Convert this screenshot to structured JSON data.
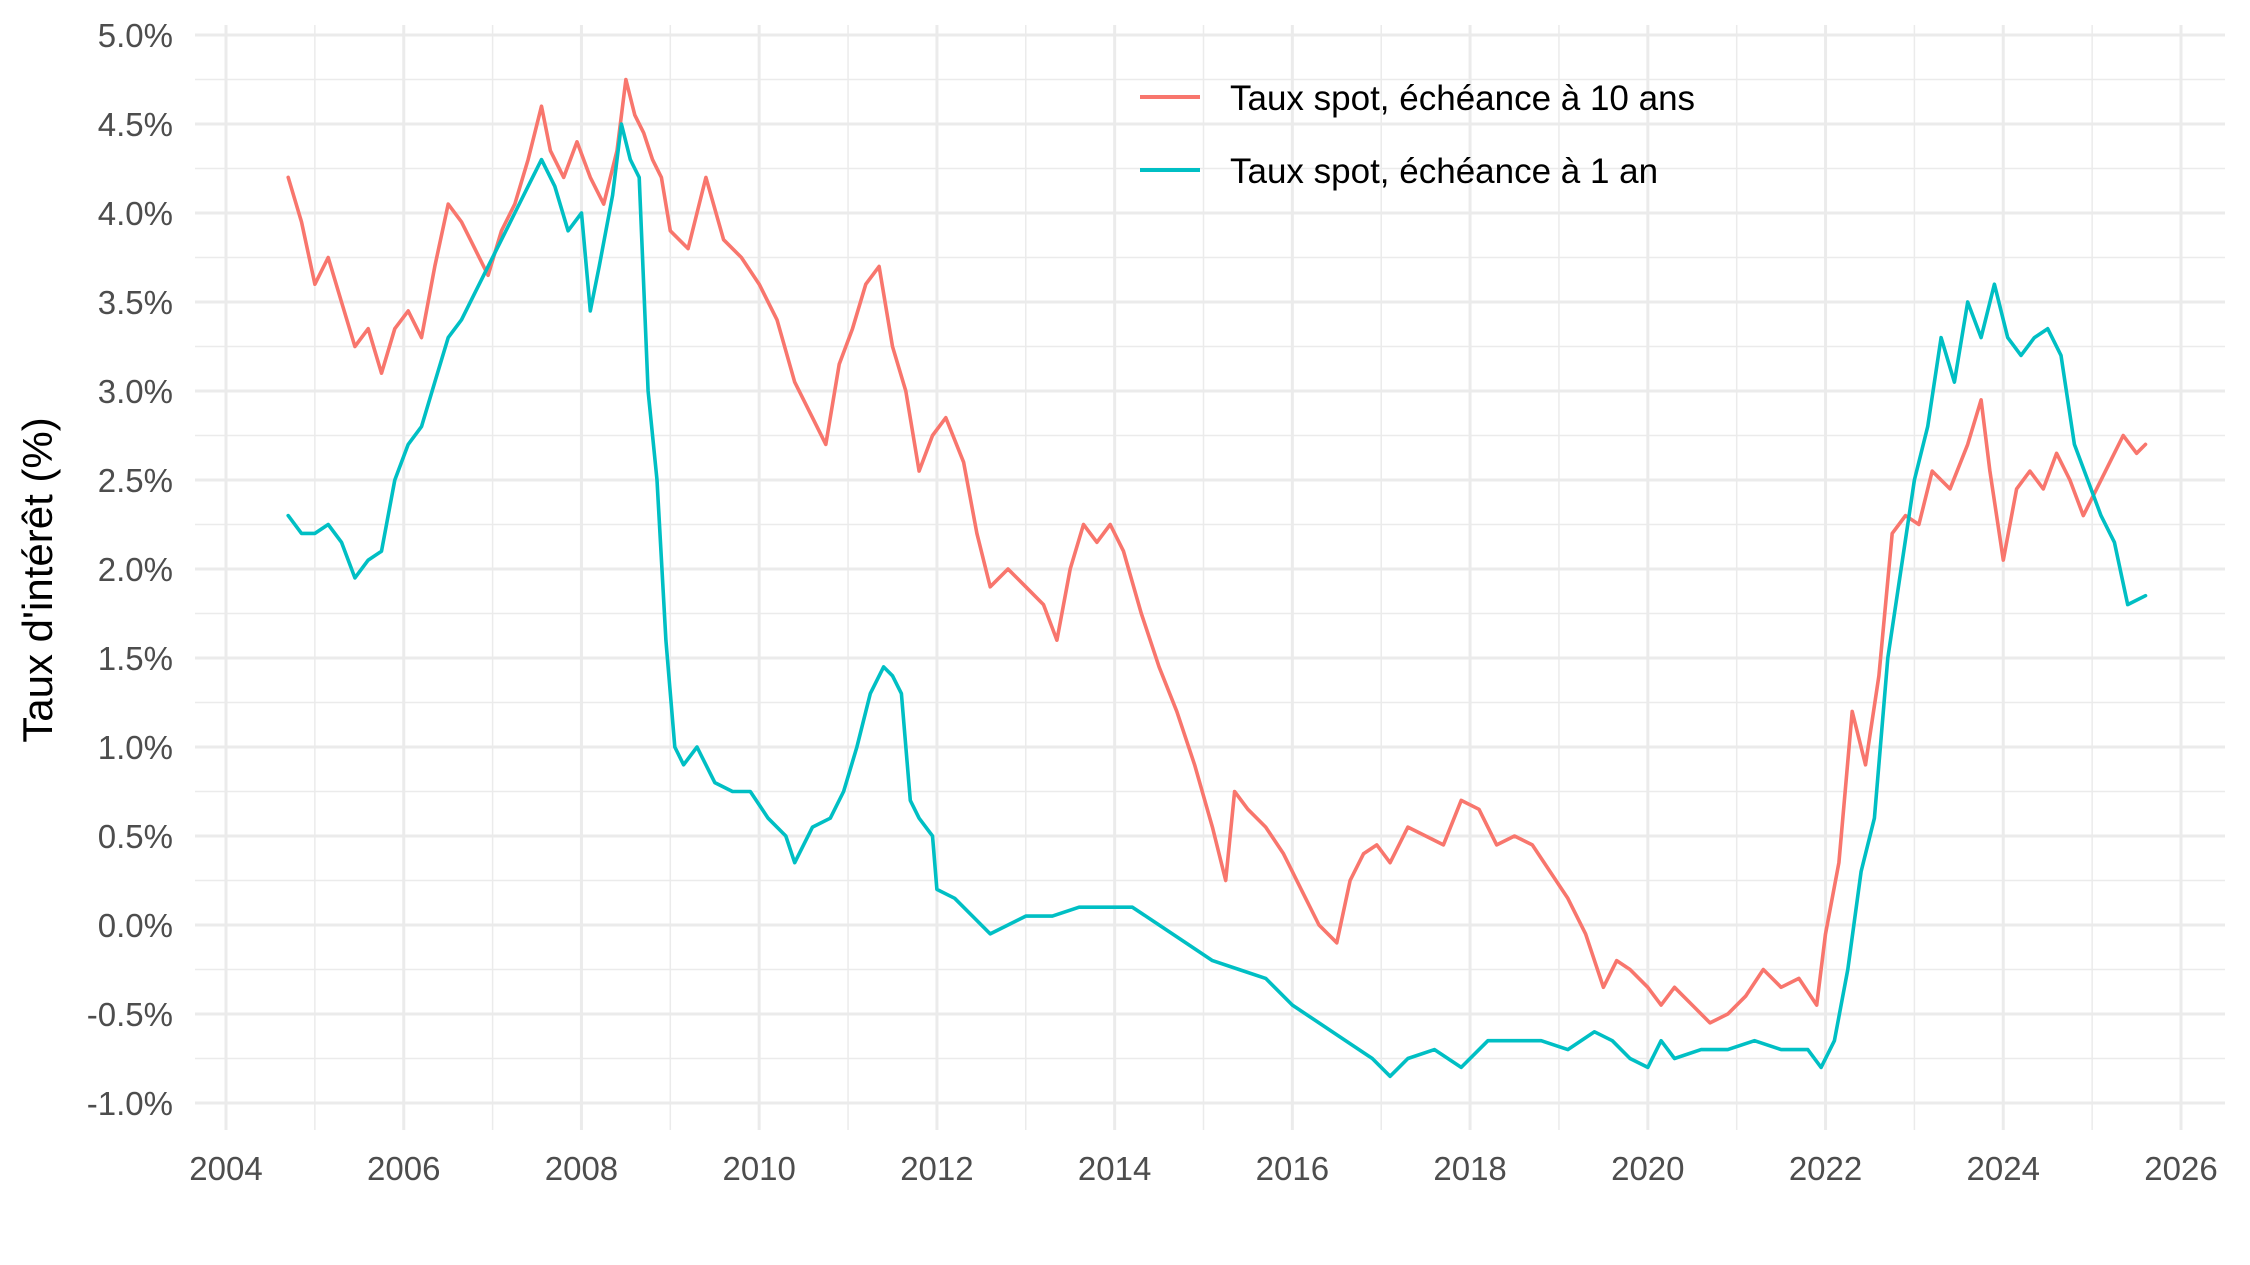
{
  "chart_data": {
    "type": "line",
    "title": "",
    "xlabel": "",
    "ylabel": "Taux d'intérêt (%)",
    "xlim": [
      2004,
      2026
    ],
    "ylim": [
      -1.0,
      5.0
    ],
    "x_ticks": [
      2004,
      2006,
      2008,
      2010,
      2012,
      2014,
      2016,
      2018,
      2020,
      2022,
      2024,
      2026
    ],
    "x_tick_labels": [
      "2004",
      "2006",
      "2008",
      "2010",
      "2012",
      "2014",
      "2016",
      "2018",
      "2020",
      "2022",
      "2024",
      "2026"
    ],
    "y_ticks": [
      -1.0,
      -0.5,
      0.0,
      0.5,
      1.0,
      1.5,
      2.0,
      2.5,
      3.0,
      3.5,
      4.0,
      4.5,
      5.0
    ],
    "y_tick_labels": [
      "-1.0%",
      "-0.5%",
      "0.0%",
      "0.5%",
      "1.0%",
      "1.5%",
      "2.0%",
      "2.5%",
      "3.0%",
      "3.5%",
      "4.0%",
      "4.5%",
      "5.0%"
    ],
    "grid": true,
    "legend_position": "top-right (inside plot)",
    "series": [
      {
        "name": "Taux spot, échéance à 10 ans",
        "color": "#F8766D",
        "x": [
          2004.7,
          2004.85,
          2005.0,
          2005.15,
          2005.3,
          2005.45,
          2005.6,
          2005.75,
          2005.9,
          2006.05,
          2006.2,
          2006.35,
          2006.5,
          2006.65,
          2006.8,
          2006.95,
          2007.1,
          2007.25,
          2007.4,
          2007.55,
          2007.65,
          2007.8,
          2007.95,
          2008.1,
          2008.25,
          2008.4,
          2008.5,
          2008.6,
          2008.7,
          2008.8,
          2008.9,
          2009.0,
          2009.2,
          2009.4,
          2009.6,
          2009.8,
          2010.0,
          2010.2,
          2010.4,
          2010.6,
          2010.75,
          2010.9,
          2011.05,
          2011.2,
          2011.35,
          2011.5,
          2011.65,
          2011.8,
          2011.95,
          2012.1,
          2012.3,
          2012.45,
          2012.6,
          2012.8,
          2013.0,
          2013.2,
          2013.35,
          2013.5,
          2013.65,
          2013.8,
          2013.95,
          2014.1,
          2014.3,
          2014.5,
          2014.7,
          2014.9,
          2015.1,
          2015.25,
          2015.35,
          2015.5,
          2015.7,
          2015.9,
          2016.1,
          2016.3,
          2016.5,
          2016.65,
          2016.8,
          2016.95,
          2017.1,
          2017.3,
          2017.5,
          2017.7,
          2017.9,
          2018.1,
          2018.3,
          2018.5,
          2018.7,
          2018.9,
          2019.1,
          2019.3,
          2019.5,
          2019.65,
          2019.8,
          2020.0,
          2020.15,
          2020.3,
          2020.5,
          2020.7,
          2020.9,
          2021.1,
          2021.3,
          2021.5,
          2021.7,
          2021.9,
          2022.0,
          2022.15,
          2022.3,
          2022.45,
          2022.6,
          2022.75,
          2022.9,
          2023.05,
          2023.2,
          2023.4,
          2023.6,
          2023.75,
          2023.85,
          2024.0,
          2024.15,
          2024.3,
          2024.45,
          2024.6,
          2024.75,
          2024.9,
          2025.05,
          2025.2,
          2025.35,
          2025.5,
          2025.6
        ],
        "y": [
          4.2,
          3.95,
          3.6,
          3.75,
          3.5,
          3.25,
          3.35,
          3.1,
          3.35,
          3.45,
          3.3,
          3.7,
          4.05,
          3.95,
          3.8,
          3.65,
          3.9,
          4.05,
          4.3,
          4.6,
          4.35,
          4.2,
          4.4,
          4.2,
          4.05,
          4.35,
          4.75,
          4.55,
          4.45,
          4.3,
          4.2,
          3.9,
          3.8,
          4.2,
          3.85,
          3.75,
          3.6,
          3.4,
          3.05,
          2.85,
          2.7,
          3.15,
          3.35,
          3.6,
          3.7,
          3.25,
          3.0,
          2.55,
          2.75,
          2.85,
          2.6,
          2.2,
          1.9,
          2.0,
          1.9,
          1.8,
          1.6,
          2.0,
          2.25,
          2.15,
          2.25,
          2.1,
          1.75,
          1.45,
          1.2,
          0.9,
          0.55,
          0.25,
          0.75,
          0.65,
          0.55,
          0.4,
          0.2,
          0.0,
          -0.1,
          0.25,
          0.4,
          0.45,
          0.35,
          0.55,
          0.5,
          0.45,
          0.7,
          0.65,
          0.45,
          0.5,
          0.45,
          0.3,
          0.15,
          -0.05,
          -0.35,
          -0.2,
          -0.25,
          -0.35,
          -0.45,
          -0.35,
          -0.45,
          -0.55,
          -0.5,
          -0.4,
          -0.25,
          -0.35,
          -0.3,
          -0.45,
          -0.05,
          0.35,
          1.2,
          0.9,
          1.4,
          2.2,
          2.3,
          2.25,
          2.55,
          2.45,
          2.7,
          2.95,
          2.55,
          2.05,
          2.45,
          2.55,
          2.45,
          2.65,
          2.5,
          2.3,
          2.45,
          2.6,
          2.75,
          2.65,
          2.7
        ]
      },
      {
        "name": "Taux spot, échéance à 1 an",
        "color": "#00BFC4",
        "x": [
          2004.7,
          2004.85,
          2005.0,
          2005.15,
          2005.3,
          2005.45,
          2005.6,
          2005.75,
          2005.9,
          2006.05,
          2006.2,
          2006.35,
          2006.5,
          2006.65,
          2006.8,
          2006.95,
          2007.1,
          2007.25,
          2007.4,
          2007.55,
          2007.7,
          2007.85,
          2008.0,
          2008.1,
          2008.2,
          2008.35,
          2008.45,
          2008.55,
          2008.65,
          2008.75,
          2008.85,
          2008.95,
          2009.05,
          2009.15,
          2009.3,
          2009.5,
          2009.7,
          2009.9,
          2010.1,
          2010.3,
          2010.4,
          2010.6,
          2010.8,
          2010.95,
          2011.1,
          2011.25,
          2011.4,
          2011.5,
          2011.6,
          2011.7,
          2011.8,
          2011.95,
          2012.0,
          2012.2,
          2012.4,
          2012.6,
          2012.8,
          2013.0,
          2013.3,
          2013.6,
          2013.9,
          2014.2,
          2014.5,
          2014.8,
          2015.1,
          2015.4,
          2015.7,
          2016.0,
          2016.3,
          2016.6,
          2016.9,
          2017.1,
          2017.3,
          2017.6,
          2017.9,
          2018.2,
          2018.5,
          2018.8,
          2019.1,
          2019.4,
          2019.6,
          2019.8,
          2020.0,
          2020.15,
          2020.3,
          2020.6,
          2020.9,
          2021.2,
          2021.5,
          2021.8,
          2021.95,
          2022.1,
          2022.25,
          2022.4,
          2022.55,
          2022.7,
          2022.85,
          2023.0,
          2023.15,
          2023.3,
          2023.45,
          2023.6,
          2023.75,
          2023.9,
          2024.05,
          2024.2,
          2024.35,
          2024.5,
          2024.65,
          2024.8,
          2024.95,
          2025.1,
          2025.25,
          2025.4,
          2025.6
        ],
        "y": [
          2.3,
          2.2,
          2.2,
          2.25,
          2.15,
          1.95,
          2.05,
          2.1,
          2.5,
          2.7,
          2.8,
          3.05,
          3.3,
          3.4,
          3.55,
          3.7,
          3.85,
          4.0,
          4.15,
          4.3,
          4.15,
          3.9,
          4.0,
          3.45,
          3.7,
          4.1,
          4.5,
          4.3,
          4.2,
          3.0,
          2.5,
          1.6,
          1.0,
          0.9,
          1.0,
          0.8,
          0.75,
          0.75,
          0.6,
          0.5,
          0.35,
          0.55,
          0.6,
          0.75,
          1.0,
          1.3,
          1.45,
          1.4,
          1.3,
          0.7,
          0.6,
          0.5,
          0.2,
          0.15,
          0.05,
          -0.05,
          0.0,
          0.05,
          0.05,
          0.1,
          0.1,
          0.1,
          0.0,
          -0.1,
          -0.2,
          -0.25,
          -0.3,
          -0.45,
          -0.55,
          -0.65,
          -0.75,
          -0.85,
          -0.75,
          -0.7,
          -0.8,
          -0.65,
          -0.65,
          -0.65,
          -0.7,
          -0.6,
          -0.65,
          -0.75,
          -0.8,
          -0.65,
          -0.75,
          -0.7,
          -0.7,
          -0.65,
          -0.7,
          -0.7,
          -0.8,
          -0.65,
          -0.25,
          0.3,
          0.6,
          1.5,
          2.0,
          2.5,
          2.8,
          3.3,
          3.05,
          3.5,
          3.3,
          3.6,
          3.3,
          3.2,
          3.3,
          3.35,
          3.2,
          2.7,
          2.5,
          2.3,
          2.15,
          1.8,
          1.85
        ]
      }
    ]
  }
}
